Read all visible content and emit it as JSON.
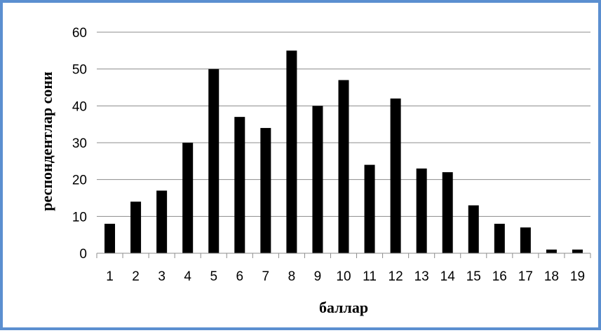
{
  "chart_data": {
    "type": "bar",
    "title": "",
    "xlabel": "баллар",
    "ylabel": "респондентлар сони",
    "categories": [
      "1",
      "2",
      "3",
      "4",
      "5",
      "6",
      "7",
      "8",
      "9",
      "10",
      "11",
      "12",
      "13",
      "14",
      "15",
      "16",
      "17",
      "18",
      "19"
    ],
    "values": [
      8,
      14,
      17,
      30,
      50,
      37,
      34,
      55,
      40,
      47,
      24,
      42,
      23,
      22,
      13,
      8,
      7,
      1,
      1
    ],
    "ylim": [
      0,
      60
    ],
    "yticks": [
      "0",
      "10",
      "20",
      "30",
      "40",
      "50",
      "60"
    ],
    "grid": true,
    "legend": "none"
  },
  "colors": {
    "bar": "#000000",
    "gridline": "#8c8c8c",
    "frame_border": "#5b8fd0"
  }
}
